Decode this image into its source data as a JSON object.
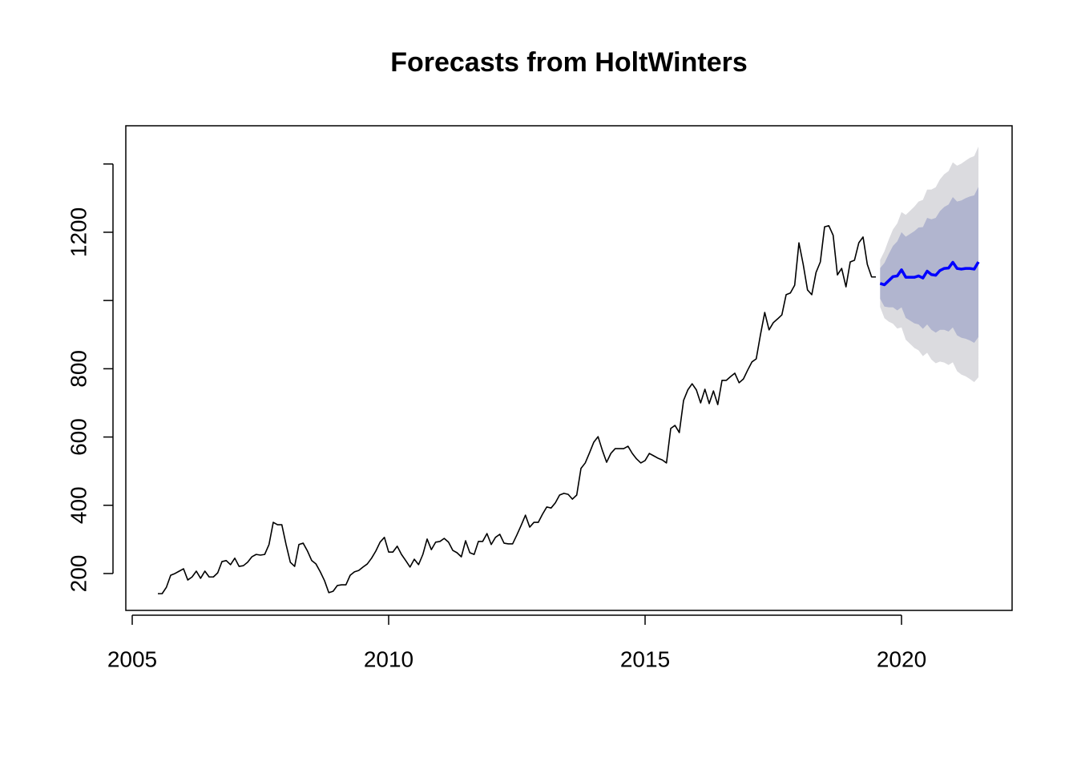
{
  "chart_data": {
    "type": "line",
    "title": "Forecasts from HoltWinters",
    "xlim": [
      2004.875,
      2022.156
    ],
    "ylim": [
      92,
      1512
    ],
    "xticks": [
      2005,
      2010,
      2015,
      2020
    ],
    "yticks": [
      200,
      400,
      600,
      800,
      {
        "value": 1000,
        "label": null
      },
      1200,
      {
        "value": 1400,
        "label": null
      }
    ],
    "series": [
      {
        "color": "#000000",
        "x": [
          2005.5,
          2005.583,
          2005.667,
          2005.75,
          2005.833,
          2005.917,
          2006,
          2006.083,
          2006.167,
          2006.25,
          2006.333,
          2006.417,
          2006.5,
          2006.583,
          2006.667,
          2006.75,
          2006.833,
          2006.917,
          2007,
          2007.083,
          2007.167,
          2007.25,
          2007.333,
          2007.417,
          2007.5,
          2007.583,
          2007.667,
          2007.75,
          2007.833,
          2007.917,
          2008,
          2008.083,
          2008.167,
          2008.25,
          2008.333,
          2008.417,
          2008.5,
          2008.583,
          2008.667,
          2008.75,
          2008.833,
          2008.917,
          2009,
          2009.083,
          2009.167,
          2009.25,
          2009.333,
          2009.417,
          2009.5,
          2009.583,
          2009.667,
          2009.75,
          2009.833,
          2009.917,
          2010,
          2010.083,
          2010.167,
          2010.25,
          2010.333,
          2010.417,
          2010.5,
          2010.583,
          2010.667,
          2010.75,
          2010.833,
          2010.917,
          2011,
          2011.083,
          2011.167,
          2011.25,
          2011.333,
          2011.417,
          2011.5,
          2011.583,
          2011.667,
          2011.75,
          2011.833,
          2011.917,
          2012,
          2012.083,
          2012.167,
          2012.25,
          2012.333,
          2012.417,
          2012.5,
          2012.583,
          2012.667,
          2012.75,
          2012.833,
          2012.917,
          2013,
          2013.083,
          2013.167,
          2013.25,
          2013.333,
          2013.417,
          2013.5,
          2013.583,
          2013.667,
          2013.75,
          2013.833,
          2013.917,
          2014,
          2014.083,
          2014.167,
          2014.25,
          2014.333,
          2014.417,
          2014.5,
          2014.583,
          2014.667,
          2014.75,
          2014.833,
          2014.917,
          2015,
          2015.083,
          2015.167,
          2015.25,
          2015.333,
          2015.417,
          2015.5,
          2015.583,
          2015.667,
          2015.75,
          2015.833,
          2015.917,
          2016,
          2016.083,
          2016.167,
          2016.25,
          2016.333,
          2016.417,
          2016.5,
          2016.583,
          2016.667,
          2016.75,
          2016.833,
          2016.917,
          2017,
          2017.083,
          2017.167,
          2017.25,
          2017.333,
          2017.417,
          2017.5,
          2017.583,
          2017.667,
          2017.75,
          2017.833,
          2017.917,
          2018,
          2018.083,
          2018.167,
          2018.25,
          2018.333,
          2018.417,
          2018.5,
          2018.583,
          2018.667,
          2018.75,
          2018.833,
          2018.917,
          2019,
          2019.083,
          2019.167,
          2019.25,
          2019.333,
          2019.417,
          2019.5
        ],
        "values": [
          141,
          141,
          160,
          195,
          200,
          207,
          214,
          181,
          190,
          207,
          186,
          207,
          190,
          190,
          202,
          235,
          238,
          226,
          245,
          221,
          223,
          233,
          249,
          256,
          254,
          256,
          285,
          350,
          343,
          343,
          285,
          233,
          221,
          285,
          289,
          266,
          238,
          228,
          205,
          179,
          144,
          148,
          165,
          167,
          167,
          195,
          205,
          209,
          219,
          228,
          245,
          266,
          292,
          306,
          263,
          263,
          280,
          256,
          238,
          219,
          242,
          226,
          256,
          301,
          270,
          292,
          294,
          303,
          292,
          268,
          261,
          249,
          296,
          261,
          256,
          294,
          294,
          317,
          285,
          306,
          315,
          289,
          287,
          287,
          313,
          341,
          371,
          336,
          350,
          350,
          374,
          395,
          392,
          407,
          430,
          435,
          432,
          418,
          430,
          508,
          524,
          554,
          585,
          601,
          561,
          526,
          552,
          566,
          566,
          566,
          573,
          552,
          536,
          524,
          531,
          552,
          545,
          538,
          533,
          524,
          625,
          634,
          613,
          707,
          738,
          756,
          738,
          700,
          740,
          698,
          735,
          695,
          766,
          766,
          777,
          787,
          759,
          770,
          796,
          820,
          829,
          900,
          965,
          914,
          935,
          946,
          958,
          1017,
          1022,
          1045,
          1169,
          1106,
          1031,
          1017,
          1082,
          1113,
          1216,
          1219,
          1191,
          1075,
          1094,
          1040,
          1113,
          1118,
          1169,
          1186,
          1106,
          1069,
          1069
        ]
      },
      {
        "color": "#0000ff",
        "x": [
          2019.583,
          2019.667,
          2019.75,
          2019.833,
          2019.917,
          2020,
          2020.083,
          2020.167,
          2020.25,
          2020.333,
          2020.417,
          2020.5,
          2020.583,
          2020.667,
          2020.75,
          2020.833,
          2020.917,
          2021,
          2021.083,
          2021.167,
          2021.25,
          2021.333,
          2021.417,
          2021.5
        ],
        "values": [
          1050,
          1046,
          1058,
          1070,
          1072,
          1090,
          1068,
          1068,
          1068,
          1072,
          1066,
          1086,
          1076,
          1074,
          1088,
          1094,
          1095,
          1112,
          1094,
          1092,
          1094,
          1094,
          1092,
          1113
        ]
      }
    ],
    "intervals": [
      {
        "color": "#dbdbdf",
        "lower": [
          981,
          948,
          938,
          932,
          918,
          921,
          885,
          873,
          861,
          854,
          837,
          847,
          827,
          816,
          821,
          818,
          811,
          819,
          793,
          783,
          778,
          770,
          761,
          775
        ],
        "upper": [
          1119,
          1144,
          1178,
          1208,
          1226,
          1259,
          1251,
          1263,
          1275,
          1290,
          1295,
          1325,
          1325,
          1332,
          1355,
          1370,
          1379,
          1405,
          1395,
          1401,
          1410,
          1418,
          1423,
          1451
        ]
      },
      {
        "color": "#b1b5cf",
        "lower": [
          1005,
          982,
          980,
          980,
          971,
          980,
          949,
          941,
          933,
          930,
          917,
          930,
          914,
          906,
          914,
          914,
          909,
          921,
          898,
          891,
          888,
          883,
          876,
          893
        ],
        "upper": [
          1095,
          1110,
          1136,
          1160,
          1173,
          1200,
          1187,
          1195,
          1203,
          1214,
          1215,
          1242,
          1238,
          1242,
          1262,
          1274,
          1281,
          1303,
          1290,
          1293,
          1300,
          1305,
          1308,
          1333
        ]
      }
    ]
  }
}
